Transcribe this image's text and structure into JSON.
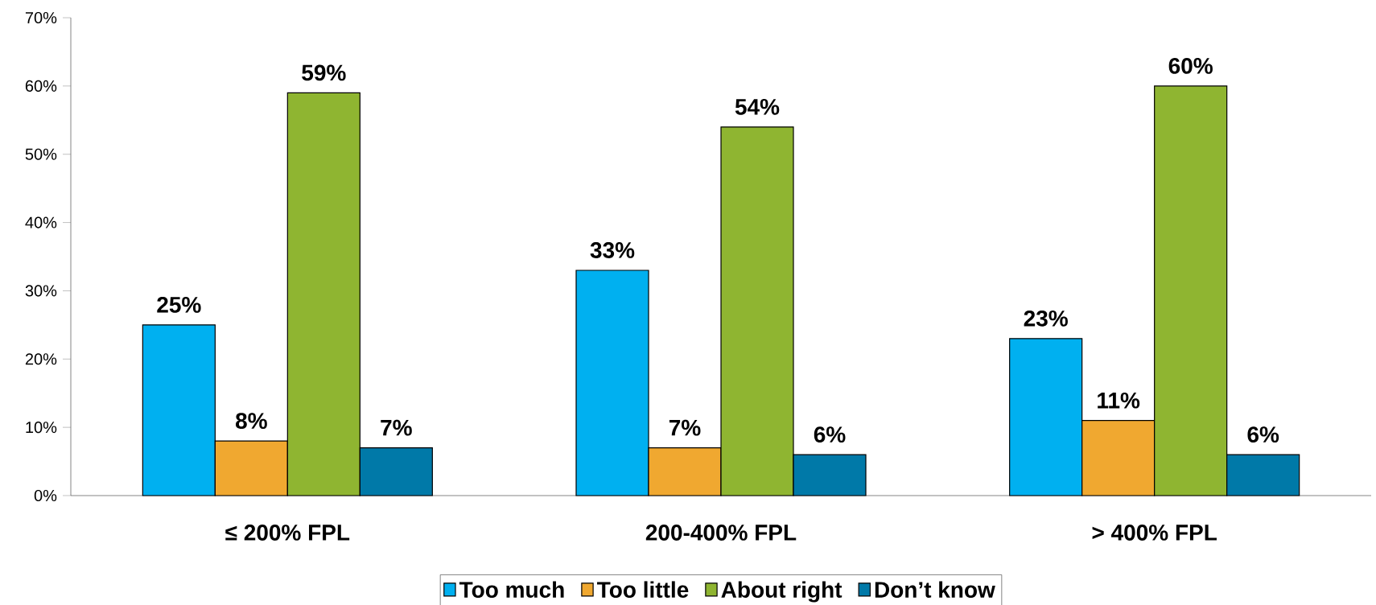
{
  "chart_data": {
    "type": "bar",
    "categories": [
      "≤ 200% FPL",
      "200-400% FPL",
      "> 400% FPL"
    ],
    "series": [
      {
        "name": "Too much",
        "color": "#00b0f0",
        "values": [
          25,
          33,
          23
        ],
        "value_labels": [
          "25%",
          "33%",
          "23%"
        ]
      },
      {
        "name": "Too little",
        "color": "#f0a830",
        "values": [
          8,
          7,
          11
        ],
        "value_labels": [
          "8%",
          "7%",
          "11%"
        ]
      },
      {
        "name": "About right",
        "color": "#8fb531",
        "values": [
          59,
          54,
          60
        ],
        "value_labels": [
          "59%",
          "54%",
          "60%"
        ]
      },
      {
        "name": "Don’t know",
        "color": "#0079a8",
        "values": [
          7,
          6,
          6
        ],
        "value_labels": [
          "7%",
          "6%",
          "6%"
        ]
      }
    ],
    "ylim": [
      0,
      70
    ],
    "yticks": [
      {
        "value": 0,
        "label": "0%"
      },
      {
        "value": 10,
        "label": "10%"
      },
      {
        "value": 20,
        "label": "20%"
      },
      {
        "value": 30,
        "label": "30%"
      },
      {
        "value": 40,
        "label": "40%"
      },
      {
        "value": 50,
        "label": "50%"
      },
      {
        "value": 60,
        "label": "60%"
      },
      {
        "value": 70,
        "label": "70%"
      }
    ],
    "legend": "bottom"
  }
}
